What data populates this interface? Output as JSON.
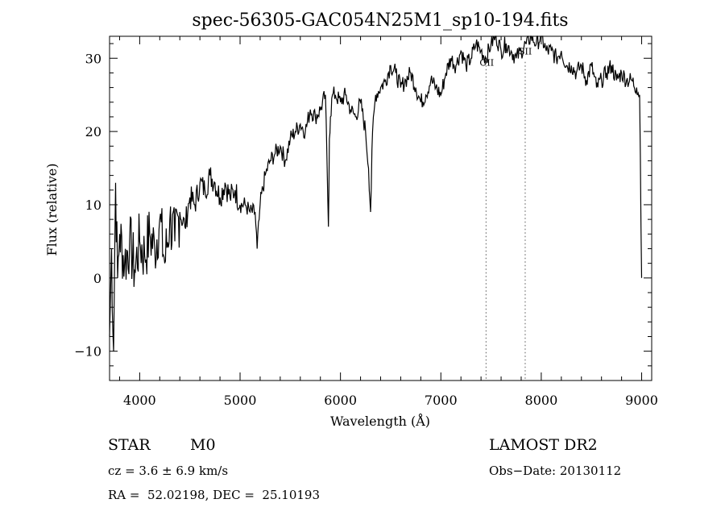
{
  "chart_data": {
    "type": "line",
    "title": "spec-56305-GAC054N25M1_sp10-194.fits",
    "xlabel": "Wavelength (Å)",
    "ylabel": "Flux (relative)",
    "xlim": [
      3700,
      9100
    ],
    "ylim": [
      -14,
      33
    ],
    "xticks": [
      4000,
      5000,
      6000,
      7000,
      8000,
      9000
    ],
    "yticks": [
      -10,
      0,
      10,
      20,
      30
    ],
    "xtick_labels": [
      "4000",
      "5000",
      "6000",
      "7000",
      "8000",
      "9000"
    ],
    "ytick_labels": [
      "−10",
      "0",
      "10",
      "20",
      "30"
    ],
    "lines": [
      {
        "label": "OII",
        "x": 7450
      },
      {
        "label": "SII",
        "x": 7840
      }
    ],
    "series": [
      {
        "name": "flux",
        "x": [
          3700,
          3720,
          3740,
          3760,
          3780,
          3800,
          3850,
          3900,
          3950,
          4000,
          4050,
          4100,
          4150,
          4200,
          4250,
          4300,
          4350,
          4400,
          4450,
          4500,
          4550,
          4600,
          4650,
          4700,
          4750,
          4800,
          4850,
          4900,
          4950,
          5000,
          5050,
          5100,
          5150,
          5170,
          5190,
          5200,
          5250,
          5300,
          5350,
          5400,
          5450,
          5500,
          5550,
          5600,
          5650,
          5700,
          5750,
          5800,
          5850,
          5880,
          5890,
          5900,
          5920,
          5950,
          6000,
          6050,
          6100,
          6150,
          6200,
          6250,
          6280,
          6300,
          6320,
          6350,
          6400,
          6450,
          6500,
          6550,
          6600,
          6650,
          6700,
          6750,
          6800,
          6850,
          6900,
          6950,
          7000,
          7050,
          7100,
          7150,
          7200,
          7250,
          7300,
          7350,
          7400,
          7450,
          7500,
          7550,
          7600,
          7650,
          7700,
          7750,
          7800,
          7850,
          7900,
          7950,
          8000,
          8050,
          8100,
          8150,
          8200,
          8250,
          8300,
          8350,
          8400,
          8450,
          8500,
          8550,
          8600,
          8650,
          8700,
          8750,
          8800,
          8850,
          8900,
          8950,
          8980,
          9000
        ],
        "y": [
          -8,
          4,
          -10,
          13,
          0,
          6,
          2,
          5,
          1,
          5,
          3,
          6,
          4,
          8,
          2,
          8,
          5,
          9,
          7,
          11,
          10,
          13,
          12,
          14,
          13,
          11,
          13,
          11,
          12,
          10,
          10,
          9,
          9,
          4,
          8,
          10,
          14,
          16,
          17,
          18,
          16,
          19,
          20,
          21,
          20,
          23,
          22,
          23,
          25,
          7,
          19,
          22,
          25,
          25,
          24,
          25,
          23,
          22,
          24,
          20,
          15,
          9,
          20,
          25,
          26,
          27,
          29,
          28,
          26,
          27,
          28,
          26,
          24,
          25,
          27,
          26,
          25,
          28,
          30,
          29,
          31,
          29,
          30,
          32,
          31,
          30,
          32,
          33,
          31,
          32,
          31,
          30,
          31,
          32,
          33,
          32,
          33,
          31,
          31,
          30,
          31,
          29,
          29,
          28,
          29,
          27,
          29,
          26,
          27,
          28,
          29,
          27,
          28,
          27,
          27,
          26,
          25,
          0
        ]
      }
    ]
  },
  "annotations": {
    "object_class": "STAR",
    "subclass": "M0",
    "survey": "LAMOST DR2",
    "cz": "cz = 3.6 ± 6.9 km/s",
    "obs_date": "Obs−Date: 20130112",
    "coords": "RA =  52.02198, DEC =  25.10193"
  }
}
